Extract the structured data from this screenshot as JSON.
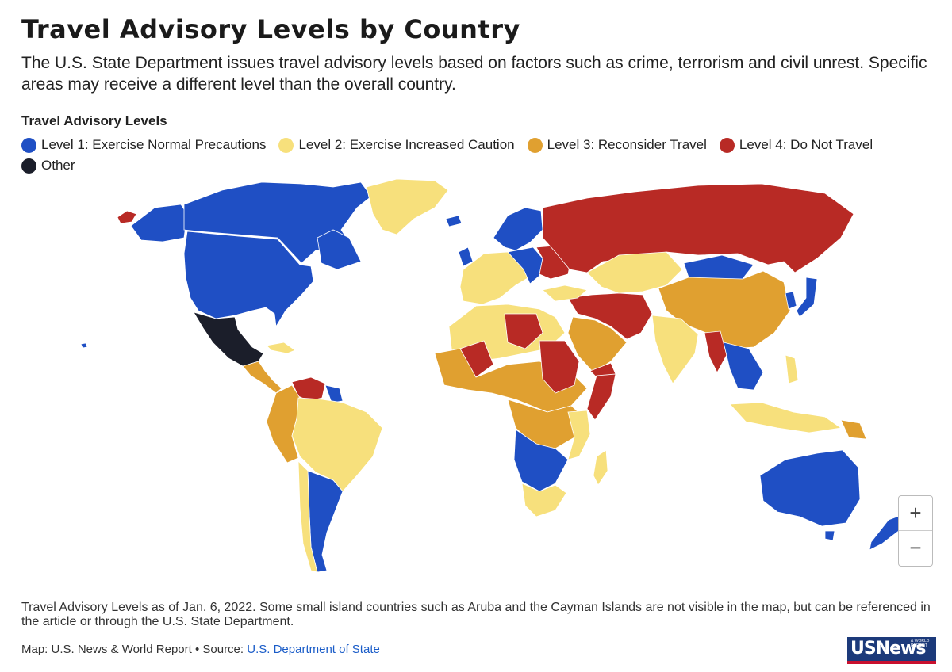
{
  "header": {
    "title": "Travel Advisory Levels by Country",
    "subtitle": "The U.S. State Department issues travel advisory levels based on factors such as crime, terrorism and civil unrest. Specific areas may receive a different level than the overall country."
  },
  "legend": {
    "title": "Travel Advisory Levels",
    "items": [
      {
        "label": "Level 1: Exercise Normal Precautions",
        "color": "#1f4fc4"
      },
      {
        "label": "Level 2: Exercise Increased Caution",
        "color": "#f7e07c"
      },
      {
        "label": "Level 3: Reconsider Travel",
        "color": "#e0a030"
      },
      {
        "label": "Level 4: Do Not Travel",
        "color": "#b82a25"
      },
      {
        "label": "Other",
        "color": "#1b1e2a"
      }
    ]
  },
  "map": {
    "regions": [
      {
        "name": "Canada",
        "level": 1
      },
      {
        "name": "United States",
        "level": 1
      },
      {
        "name": "Mexico",
        "level": "Other"
      },
      {
        "name": "Greenland",
        "level": 2
      },
      {
        "name": "Central America",
        "level": 3
      },
      {
        "name": "Venezuela",
        "level": 4
      },
      {
        "name": "Colombia / Ecuador / Peru",
        "level": 3
      },
      {
        "name": "Brazil / Bolivia",
        "level": 2
      },
      {
        "name": "Argentina / Uruguay",
        "level": 1
      },
      {
        "name": "Chile",
        "level": 2
      },
      {
        "name": "Russia",
        "level": 4
      },
      {
        "name": "Northern Europe",
        "level": 1
      },
      {
        "name": "Western Europe",
        "level": 2
      },
      {
        "name": "Ukraine / Belarus",
        "level": 4
      },
      {
        "name": "Central Asia",
        "level": 2
      },
      {
        "name": "Mongolia",
        "level": 1
      },
      {
        "name": "China",
        "level": 3
      },
      {
        "name": "Japan / Korea",
        "level": 1
      },
      {
        "name": "Middle East conflict zone",
        "level": 4
      },
      {
        "name": "Arabian Peninsula",
        "level": 3
      },
      {
        "name": "India",
        "level": 2
      },
      {
        "name": "Myanmar",
        "level": 4
      },
      {
        "name": "Southeast Asia",
        "level": 1
      },
      {
        "name": "Indonesia",
        "level": 2
      },
      {
        "name": "Papua New Guinea",
        "level": 3
      },
      {
        "name": "Australia",
        "level": 1
      },
      {
        "name": "New Zealand",
        "level": 1
      },
      {
        "name": "North Africa",
        "level": 2
      },
      {
        "name": "Libya / Sudan / Mali",
        "level": 4
      },
      {
        "name": "Sahel / West Africa",
        "level": 3
      },
      {
        "name": "Central Africa",
        "level": 3
      },
      {
        "name": "Somalia",
        "level": 4
      },
      {
        "name": "Southern Africa",
        "level": 1
      },
      {
        "name": "South Africa",
        "level": 2
      },
      {
        "name": "Madagascar",
        "level": 2
      }
    ]
  },
  "zoom": {
    "in_label": "+",
    "out_label": "−"
  },
  "footer": {
    "note": "Travel Advisory Levels as of Jan. 6, 2022. Some small island countries such as Aruba and the Cayman Islands are not visible in the map, but can be referenced in the article or through the U.S. State Department.",
    "credit_prefix": "Map: U.S. News & World Report • Source: ",
    "credit_link": "U.S. Department of State",
    "logo_text": "USNews",
    "logo_small": "& WORLD REPORT"
  }
}
